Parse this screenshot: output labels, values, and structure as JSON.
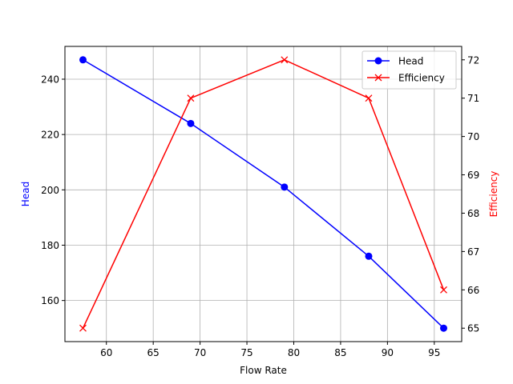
{
  "chart_data": {
    "type": "line",
    "title": "",
    "xlabel": "Flow Rate",
    "ylabel": "Head",
    "y2label": "Efficiency",
    "x": [
      57.5,
      69,
      79,
      88,
      96
    ],
    "series": [
      {
        "name": "Head",
        "axis": "left",
        "color": "#0000ff",
        "marker": "circle",
        "values": [
          247,
          224,
          201,
          176,
          150
        ]
      },
      {
        "name": "Efficiency",
        "axis": "right",
        "color": "#ff0000",
        "marker": "x",
        "values": [
          65,
          71,
          72,
          71,
          66
        ]
      }
    ],
    "xlim": [
      55.575,
      97.925
    ],
    "ylim": [
      145.15,
      251.85
    ],
    "y2lim": [
      64.65,
      72.35
    ],
    "xticks": [
      60,
      65,
      70,
      75,
      80,
      85,
      90,
      95
    ],
    "yticks": [
      160,
      180,
      200,
      220,
      240
    ],
    "y2ticks": [
      65,
      66,
      67,
      68,
      69,
      70,
      71,
      72
    ],
    "grid": true,
    "legend_position": "upper right"
  },
  "colors": {
    "head": "#0000ff",
    "efficiency": "#ff0000",
    "grid": "#b0b0b0",
    "axis": "#000000"
  }
}
